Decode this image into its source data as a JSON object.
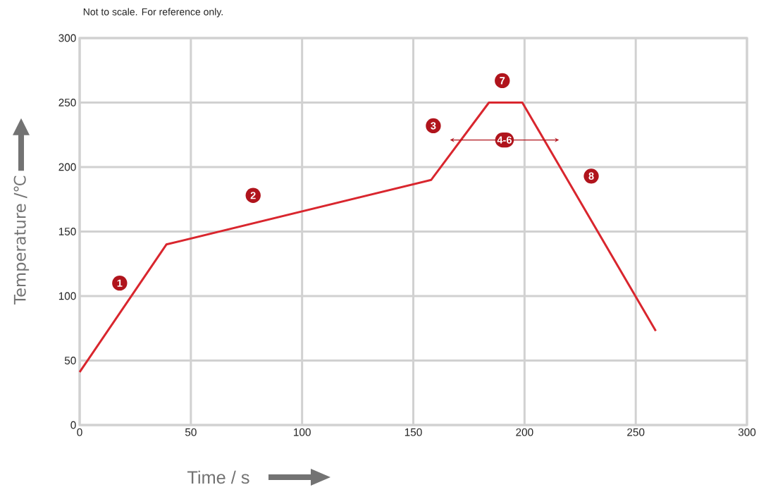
{
  "chart_data": {
    "type": "line",
    "title": "Not to scale. For reference only.",
    "xlabel": "Time / s",
    "ylabel": "Temperature /℃",
    "x": [
      0,
      39,
      158,
      184,
      199,
      259
    ],
    "series": [
      {
        "color": "#d9262e",
        "values": [
          41,
          140,
          190,
          250,
          250,
          73
        ]
      }
    ],
    "xlim": [
      0,
      300
    ],
    "ylim": [
      0,
      300
    ],
    "xticks": [
      0,
      50,
      100,
      150,
      200,
      250,
      300
    ],
    "yticks": [
      0,
      50,
      100,
      150,
      200,
      250,
      300
    ],
    "grid": true,
    "marker": "none",
    "line_style": "solid",
    "annotations": [
      {
        "text": "1",
        "x": 18,
        "y": 110
      },
      {
        "text": "2",
        "x": 78,
        "y": 178
      },
      {
        "text": "3",
        "x": 159,
        "y": 232
      },
      {
        "text": "7",
        "x": 190,
        "y": 267
      },
      {
        "text": "8",
        "x": 230,
        "y": 193
      },
      {
        "text": "4-6",
        "x": 191,
        "y": 221
      }
    ]
  }
}
